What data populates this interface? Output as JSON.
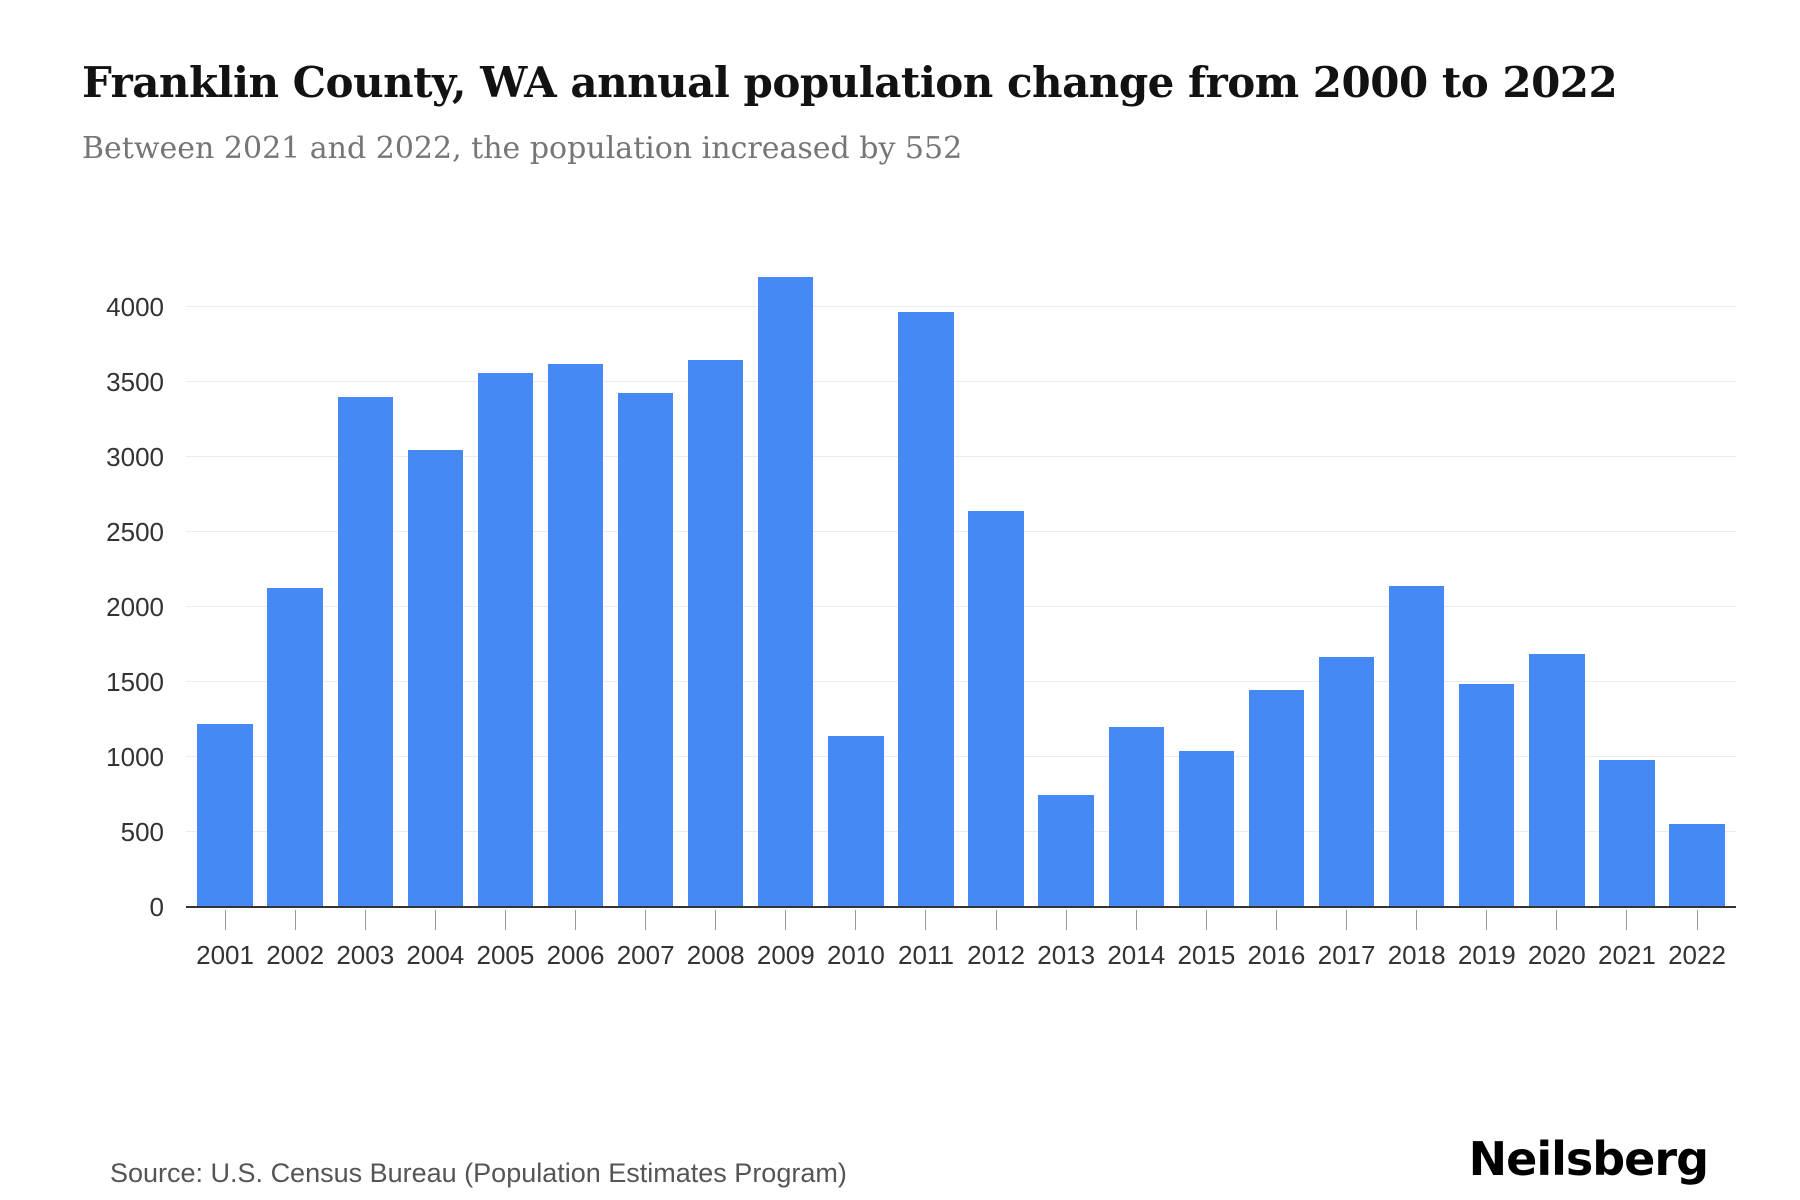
{
  "header": {
    "title": "Franklin County, WA annual population change from 2000 to 2022",
    "subtitle": "Between 2021 and 2022, the population increased by 552"
  },
  "footer": {
    "source": "Source: U.S. Census Bureau (Population Estimates Program)",
    "logo": "Neilsberg"
  },
  "colors": {
    "bar": "#4689f4",
    "gridline": "#ededed",
    "axis": "#333333"
  },
  "chart_data": {
    "type": "bar",
    "title": "Franklin County, WA annual population change from 2000 to 2022",
    "subtitle": "Between 2021 and 2022, the population increased by 552",
    "xlabel": "",
    "ylabel": "",
    "categories": [
      "2001",
      "2002",
      "2003",
      "2004",
      "2005",
      "2006",
      "2007",
      "2008",
      "2009",
      "2010",
      "2011",
      "2012",
      "2013",
      "2014",
      "2015",
      "2016",
      "2017",
      "2018",
      "2019",
      "2020",
      "2021",
      "2022"
    ],
    "values": [
      1220,
      2130,
      3400,
      3050,
      3560,
      3620,
      3430,
      3650,
      4200,
      1140,
      3970,
      2640,
      750,
      1200,
      1040,
      1450,
      1670,
      2140,
      1490,
      1690,
      980,
      552
    ],
    "ylim": [
      0,
      4300
    ],
    "yticks": [
      0,
      500,
      1000,
      1500,
      2000,
      2500,
      3000,
      3500,
      4000
    ],
    "grid": "horizontal",
    "legend": "none",
    "bar_color": "#4689f4"
  }
}
